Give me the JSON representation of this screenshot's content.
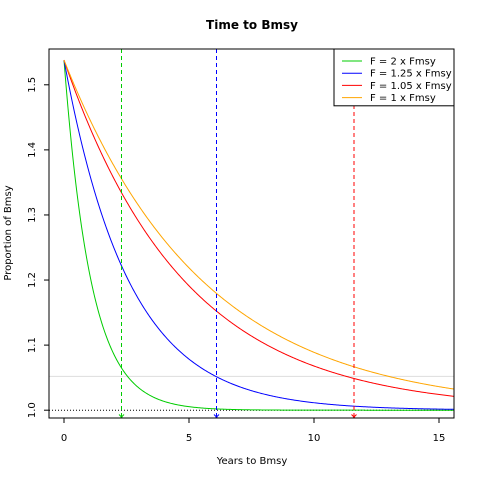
{
  "chart_data": {
    "type": "line",
    "title": "Time to Bmsy",
    "xlabel": "Years to Bmsy",
    "ylabel": "Proportion of Bmsy",
    "xlim": [
      -0.6,
      15.6
    ],
    "ylim": [
      0.988,
      1.555
    ],
    "xticks": [
      0,
      5,
      10,
      15
    ],
    "yticks": [
      1.0,
      1.1,
      1.2,
      1.3,
      1.4,
      1.5
    ],
    "xtick_labels": [
      "0",
      "5",
      "10",
      "15"
    ],
    "ytick_labels": [
      "1.0",
      "1.1",
      "1.2",
      "1.3",
      "1.4",
      "1.5"
    ],
    "legend_position": "top-right",
    "start_value": 1.538,
    "series": [
      {
        "name": "F = 2 x Fmsy",
        "color": "#00cc00",
        "decay_rate": 0.92,
        "threshold_year": 2.3
      },
      {
        "name": "F = 1.25 x Fmsy",
        "color": "#0000ff",
        "decay_rate": 0.385,
        "threshold_year": 6.1
      },
      {
        "name": "F = 1.05 x Fmsy",
        "color": "#ff0000",
        "decay_rate": 0.207,
        "threshold_year": 11.6
      },
      {
        "name": "F = 1 x Fmsy",
        "color": "#ffa500",
        "decay_rate": 0.18,
        "threshold_year": null
      }
    ],
    "reference_lines": [
      {
        "y": 1.0,
        "style": "dotted",
        "color": "#000000"
      },
      {
        "y": 1.052,
        "style": "solid",
        "color": "#dddddd"
      }
    ]
  }
}
